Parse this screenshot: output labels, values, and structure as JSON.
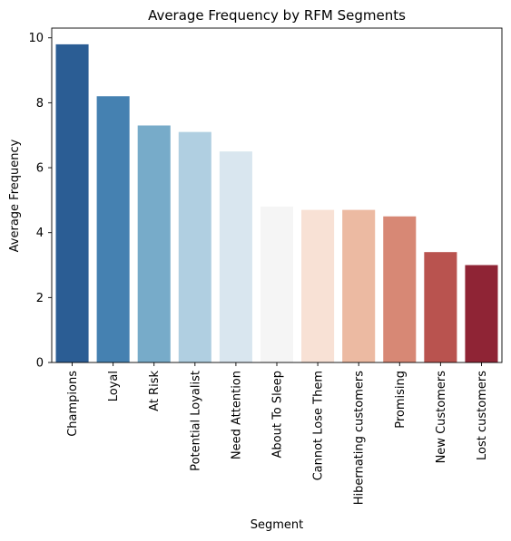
{
  "chart_data": {
    "type": "bar",
    "title": "Average Frequency by RFM Segments",
    "xlabel": "Segment",
    "ylabel": "Average Frequency",
    "ylim": [
      0,
      10.3
    ],
    "yticks": [
      0,
      2,
      4,
      6,
      8,
      10
    ],
    "grid": false,
    "legend": "none",
    "categories": [
      "Champions",
      "Loyal",
      "At Risk",
      "Potential Loyalist",
      "Need Attention",
      "About To Sleep",
      "Cannot Lose Them",
      "Hibernating customers",
      "Promising",
      "New Customers",
      "Lost customers"
    ],
    "values": [
      9.8,
      8.2,
      7.3,
      7.1,
      6.5,
      4.8,
      4.7,
      4.7,
      4.5,
      3.4,
      3.0
    ],
    "colors": [
      "#2b5d94",
      "#4581b1",
      "#77abc9",
      "#b0cfe1",
      "#d9e6ef",
      "#f5f5f5",
      "#f8e1d5",
      "#ecbaa2",
      "#d78875",
      "#b9534f",
      "#8f2435"
    ]
  }
}
